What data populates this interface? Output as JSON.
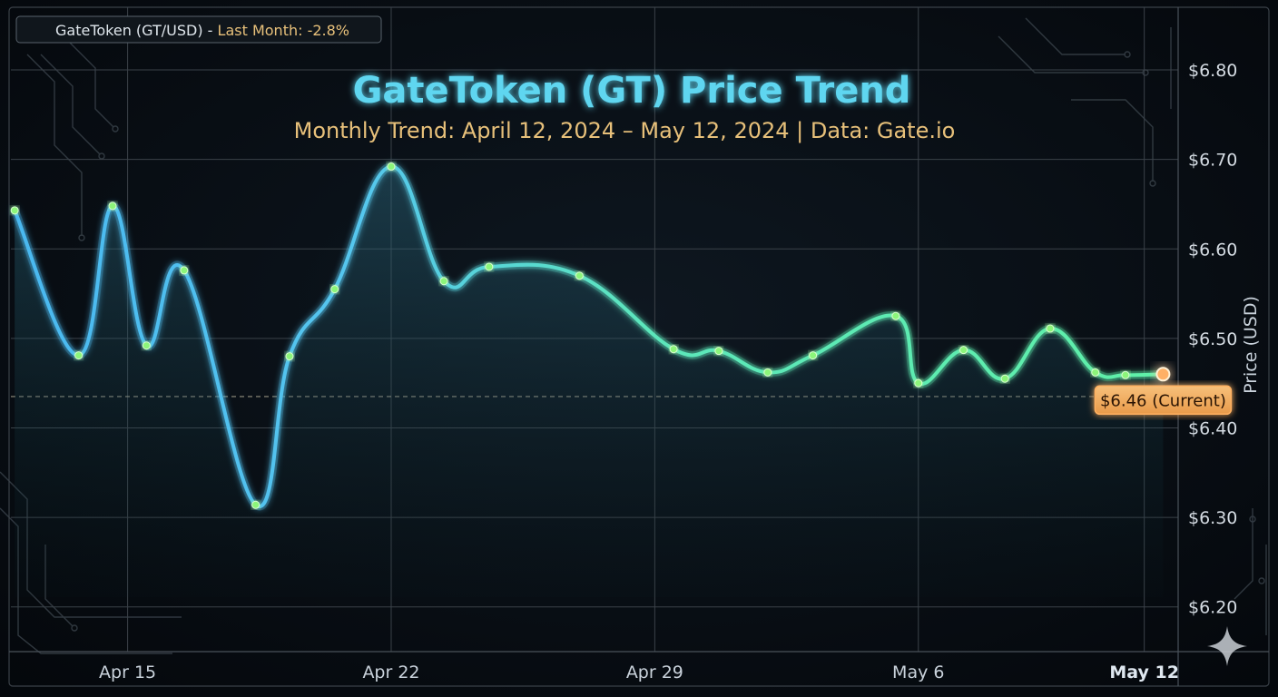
{
  "chart_data": {
    "type": "line",
    "title": "GateToken (GT) Price Trend",
    "subtitle": "Monthly Trend: April 12, 2024 – May 12, 2024 | Data: Gate.io",
    "ylabel": "Price (USD)",
    "xlabel": "",
    "ylim": [
      6.15,
      6.87
    ],
    "xlim": [
      -0.1,
      30.9
    ],
    "yticks": [
      6.2,
      6.3,
      6.4,
      6.5,
      6.6,
      6.7,
      6.8
    ],
    "ytick_labels": [
      "$6.20",
      "$6.30",
      "$6.40",
      "$6.50",
      "$6.60",
      "$6.70",
      "$6.80"
    ],
    "xticks": [
      3,
      10,
      17,
      24,
      30
    ],
    "xtick_labels": [
      "Apr 15",
      "Apr 22",
      "Apr 29",
      "May 6",
      "May 12"
    ],
    "grid": true,
    "legend": {
      "series_label": "GateToken (GT/USD) - ",
      "change_label": "Last Month: -2.8%",
      "position": "top-left"
    },
    "reference_line": 6.435,
    "series": [
      {
        "name": "GateToken (GT/USD)",
        "color_start": "#4ab8f0",
        "color_end": "#5ef0a8",
        "x": [
          0,
          1.7,
          2.6,
          3.5,
          4.5,
          6.4,
          7.3,
          8.5,
          10,
          11.4,
          12.6,
          15,
          17.5,
          18.7,
          20,
          21.2,
          23.4,
          24,
          25.2,
          26.3,
          27.5,
          28.7,
          29.5,
          30.5
        ],
        "y": [
          6.643,
          6.481,
          6.648,
          6.492,
          6.576,
          6.314,
          6.48,
          6.555,
          6.692,
          6.564,
          6.58,
          6.57,
          6.488,
          6.486,
          6.462,
          6.481,
          6.525,
          6.45,
          6.487,
          6.455,
          6.511,
          6.462,
          6.459,
          6.46
        ]
      }
    ],
    "current_point": {
      "x": 30.5,
      "y": 6.46,
      "label": "$6.46 (Current)"
    }
  }
}
